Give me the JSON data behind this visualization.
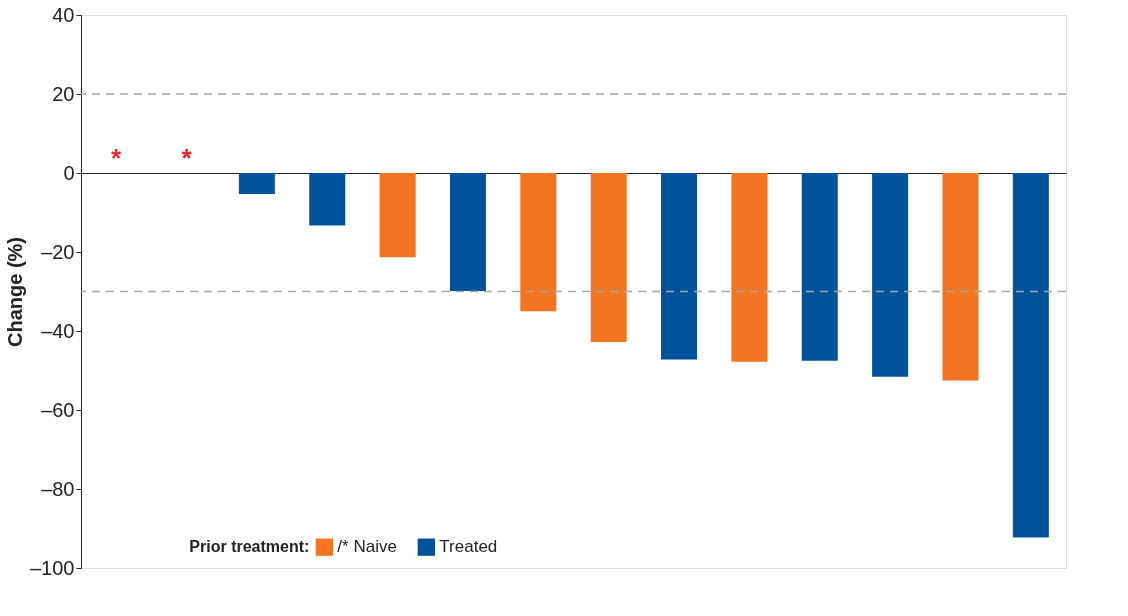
{
  "chart_data": {
    "type": "bar",
    "ylabel": "Change (%)",
    "legend_title": "Prior treatment:",
    "legend": "bottom left",
    "tick_labels": "y",
    "grid": false,
    "categories": [
      null,
      null,
      null,
      null,
      null,
      null,
      null,
      null,
      null,
      null,
      null,
      null,
      null,
      null
    ],
    "series": [
      {
        "name": "/* Naive",
        "color": "#f37421",
        "values": [
          0,
          0,
          null,
          null,
          -21.3,
          null,
          -35.0,
          -42.8,
          null,
          -47.8,
          null,
          null,
          -52.5,
          null
        ],
        "value_labels": [
          "*",
          "*",
          null,
          null,
          null,
          null,
          null,
          null,
          null,
          null,
          null,
          null,
          null,
          null
        ]
      },
      {
        "name": "Treated",
        "color": "#00529b",
        "values": [
          null,
          null,
          -5.3,
          -13.3,
          null,
          -29.9,
          null,
          null,
          -47.2,
          null,
          -47.5,
          -51.6,
          null,
          -92.3
        ]
      }
    ],
    "ylim": [
      -100,
      40
    ],
    "yticks": [
      {
        "value": -100,
        "label": "–100"
      },
      {
        "value": -80,
        "label": "–80"
      },
      {
        "value": -60,
        "label": "–60"
      },
      {
        "value": -40,
        "label": "–40"
      },
      {
        "value": -20,
        "label": "–20"
      },
      0,
      20,
      40
    ],
    "ref_lines": [
      {
        "axis": "y",
        "value": 20,
        "color": "#a6a6a6",
        "line_style": "dashed"
      },
      {
        "axis": "y",
        "value": -30,
        "color": "#a6a6a6",
        "line_style": "dashed"
      }
    ]
  }
}
